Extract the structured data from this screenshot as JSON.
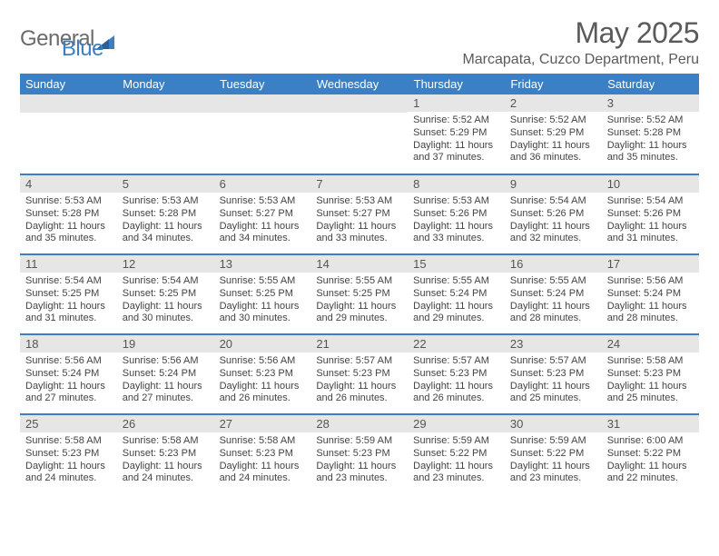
{
  "brand": {
    "part1": "General",
    "part2": "Blue"
  },
  "title": "May 2025",
  "location": "Marcapata, Cuzco Department, Peru",
  "colors": {
    "header_bg": "#3b7fc4",
    "header_text": "#ffffff",
    "daynum_bg": "#e6e6e6",
    "row_divider": "#3b7fc4",
    "body_text": "#444444",
    "title_text": "#5a5a5a"
  },
  "day_headers": [
    "Sunday",
    "Monday",
    "Tuesday",
    "Wednesday",
    "Thursday",
    "Friday",
    "Saturday"
  ],
  "weeks": [
    [
      {
        "n": "",
        "sr": "",
        "ss": "",
        "dl": ""
      },
      {
        "n": "",
        "sr": "",
        "ss": "",
        "dl": ""
      },
      {
        "n": "",
        "sr": "",
        "ss": "",
        "dl": ""
      },
      {
        "n": "",
        "sr": "",
        "ss": "",
        "dl": ""
      },
      {
        "n": "1",
        "sr": "Sunrise: 5:52 AM",
        "ss": "Sunset: 5:29 PM",
        "dl": "Daylight: 11 hours and 37 minutes."
      },
      {
        "n": "2",
        "sr": "Sunrise: 5:52 AM",
        "ss": "Sunset: 5:29 PM",
        "dl": "Daylight: 11 hours and 36 minutes."
      },
      {
        "n": "3",
        "sr": "Sunrise: 5:52 AM",
        "ss": "Sunset: 5:28 PM",
        "dl": "Daylight: 11 hours and 35 minutes."
      }
    ],
    [
      {
        "n": "4",
        "sr": "Sunrise: 5:53 AM",
        "ss": "Sunset: 5:28 PM",
        "dl": "Daylight: 11 hours and 35 minutes."
      },
      {
        "n": "5",
        "sr": "Sunrise: 5:53 AM",
        "ss": "Sunset: 5:28 PM",
        "dl": "Daylight: 11 hours and 34 minutes."
      },
      {
        "n": "6",
        "sr": "Sunrise: 5:53 AM",
        "ss": "Sunset: 5:27 PM",
        "dl": "Daylight: 11 hours and 34 minutes."
      },
      {
        "n": "7",
        "sr": "Sunrise: 5:53 AM",
        "ss": "Sunset: 5:27 PM",
        "dl": "Daylight: 11 hours and 33 minutes."
      },
      {
        "n": "8",
        "sr": "Sunrise: 5:53 AM",
        "ss": "Sunset: 5:26 PM",
        "dl": "Daylight: 11 hours and 33 minutes."
      },
      {
        "n": "9",
        "sr": "Sunrise: 5:54 AM",
        "ss": "Sunset: 5:26 PM",
        "dl": "Daylight: 11 hours and 32 minutes."
      },
      {
        "n": "10",
        "sr": "Sunrise: 5:54 AM",
        "ss": "Sunset: 5:26 PM",
        "dl": "Daylight: 11 hours and 31 minutes."
      }
    ],
    [
      {
        "n": "11",
        "sr": "Sunrise: 5:54 AM",
        "ss": "Sunset: 5:25 PM",
        "dl": "Daylight: 11 hours and 31 minutes."
      },
      {
        "n": "12",
        "sr": "Sunrise: 5:54 AM",
        "ss": "Sunset: 5:25 PM",
        "dl": "Daylight: 11 hours and 30 minutes."
      },
      {
        "n": "13",
        "sr": "Sunrise: 5:55 AM",
        "ss": "Sunset: 5:25 PM",
        "dl": "Daylight: 11 hours and 30 minutes."
      },
      {
        "n": "14",
        "sr": "Sunrise: 5:55 AM",
        "ss": "Sunset: 5:25 PM",
        "dl": "Daylight: 11 hours and 29 minutes."
      },
      {
        "n": "15",
        "sr": "Sunrise: 5:55 AM",
        "ss": "Sunset: 5:24 PM",
        "dl": "Daylight: 11 hours and 29 minutes."
      },
      {
        "n": "16",
        "sr": "Sunrise: 5:55 AM",
        "ss": "Sunset: 5:24 PM",
        "dl": "Daylight: 11 hours and 28 minutes."
      },
      {
        "n": "17",
        "sr": "Sunrise: 5:56 AM",
        "ss": "Sunset: 5:24 PM",
        "dl": "Daylight: 11 hours and 28 minutes."
      }
    ],
    [
      {
        "n": "18",
        "sr": "Sunrise: 5:56 AM",
        "ss": "Sunset: 5:24 PM",
        "dl": "Daylight: 11 hours and 27 minutes."
      },
      {
        "n": "19",
        "sr": "Sunrise: 5:56 AM",
        "ss": "Sunset: 5:24 PM",
        "dl": "Daylight: 11 hours and 27 minutes."
      },
      {
        "n": "20",
        "sr": "Sunrise: 5:56 AM",
        "ss": "Sunset: 5:23 PM",
        "dl": "Daylight: 11 hours and 26 minutes."
      },
      {
        "n": "21",
        "sr": "Sunrise: 5:57 AM",
        "ss": "Sunset: 5:23 PM",
        "dl": "Daylight: 11 hours and 26 minutes."
      },
      {
        "n": "22",
        "sr": "Sunrise: 5:57 AM",
        "ss": "Sunset: 5:23 PM",
        "dl": "Daylight: 11 hours and 26 minutes."
      },
      {
        "n": "23",
        "sr": "Sunrise: 5:57 AM",
        "ss": "Sunset: 5:23 PM",
        "dl": "Daylight: 11 hours and 25 minutes."
      },
      {
        "n": "24",
        "sr": "Sunrise: 5:58 AM",
        "ss": "Sunset: 5:23 PM",
        "dl": "Daylight: 11 hours and 25 minutes."
      }
    ],
    [
      {
        "n": "25",
        "sr": "Sunrise: 5:58 AM",
        "ss": "Sunset: 5:23 PM",
        "dl": "Daylight: 11 hours and 24 minutes."
      },
      {
        "n": "26",
        "sr": "Sunrise: 5:58 AM",
        "ss": "Sunset: 5:23 PM",
        "dl": "Daylight: 11 hours and 24 minutes."
      },
      {
        "n": "27",
        "sr": "Sunrise: 5:58 AM",
        "ss": "Sunset: 5:23 PM",
        "dl": "Daylight: 11 hours and 24 minutes."
      },
      {
        "n": "28",
        "sr": "Sunrise: 5:59 AM",
        "ss": "Sunset: 5:23 PM",
        "dl": "Daylight: 11 hours and 23 minutes."
      },
      {
        "n": "29",
        "sr": "Sunrise: 5:59 AM",
        "ss": "Sunset: 5:22 PM",
        "dl": "Daylight: 11 hours and 23 minutes."
      },
      {
        "n": "30",
        "sr": "Sunrise: 5:59 AM",
        "ss": "Sunset: 5:22 PM",
        "dl": "Daylight: 11 hours and 23 minutes."
      },
      {
        "n": "31",
        "sr": "Sunrise: 6:00 AM",
        "ss": "Sunset: 5:22 PM",
        "dl": "Daylight: 11 hours and 22 minutes."
      }
    ]
  ]
}
